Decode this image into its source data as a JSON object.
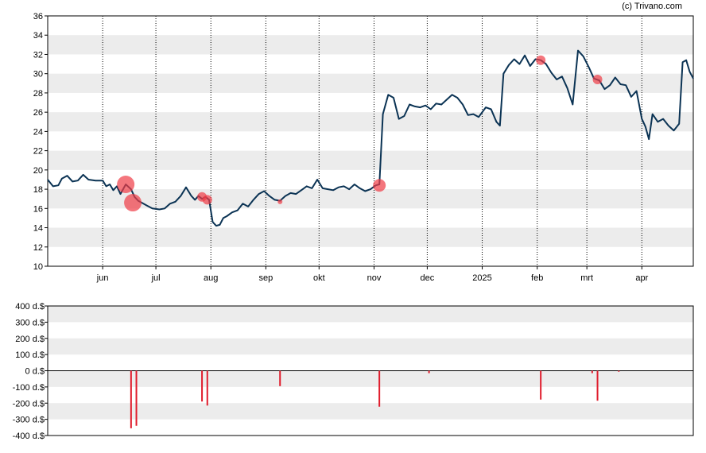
{
  "credit": "(c) Trivano.com",
  "colors": {
    "price_line": "#0b3354",
    "trade_bubble": "#f03c46",
    "volume_bar": "#e01c2c",
    "band": "#ececec",
    "grid_v": "#000000",
    "axis": "#000000"
  },
  "chart_data": [
    {
      "type": "line",
      "title": "",
      "xlabel": "",
      "ylabel": "",
      "ylim": [
        10,
        36
      ],
      "yticks": [
        10,
        12,
        14,
        16,
        18,
        20,
        22,
        24,
        26,
        28,
        30,
        32,
        34,
        36
      ],
      "alternating_bands": true,
      "grid": "vertical dotted at month starts",
      "x_domain": [
        "2024-05-01",
        "2025-04-30"
      ],
      "month_ticks": [
        {
          "label": "jun",
          "date": "2024-06-01"
        },
        {
          "label": "jul",
          "date": "2024-07-01"
        },
        {
          "label": "aug",
          "date": "2024-08-01"
        },
        {
          "label": "sep",
          "date": "2024-09-01"
        },
        {
          "label": "okt",
          "date": "2024-10-01"
        },
        {
          "label": "nov",
          "date": "2024-11-01"
        },
        {
          "label": "dec",
          "date": "2024-12-01"
        },
        {
          "label": "2025",
          "date": "2025-01-01"
        },
        {
          "label": "feb",
          "date": "2025-02-01"
        },
        {
          "label": "mrt",
          "date": "2025-03-01"
        },
        {
          "label": "apr",
          "date": "2025-04-01"
        }
      ],
      "series": [
        {
          "points": [
            [
              "2024-05-01",
              19.0
            ],
            [
              "2024-05-04",
              18.3
            ],
            [
              "2024-05-07",
              18.4
            ],
            [
              "2024-05-09",
              19.1
            ],
            [
              "2024-05-12",
              19.4
            ],
            [
              "2024-05-15",
              18.8
            ],
            [
              "2024-05-18",
              18.9
            ],
            [
              "2024-05-21",
              19.5
            ],
            [
              "2024-05-24",
              19.0
            ],
            [
              "2024-05-28",
              18.9
            ],
            [
              "2024-06-01",
              18.9
            ],
            [
              "2024-06-03",
              18.3
            ],
            [
              "2024-06-05",
              18.5
            ],
            [
              "2024-06-07",
              17.9
            ],
            [
              "2024-06-09",
              18.3
            ],
            [
              "2024-06-11",
              17.5
            ],
            [
              "2024-06-14",
              18.5
            ],
            [
              "2024-06-17",
              18.0
            ],
            [
              "2024-06-19",
              17.2
            ],
            [
              "2024-06-21",
              16.8
            ],
            [
              "2024-06-23",
              16.6
            ],
            [
              "2024-06-26",
              16.3
            ],
            [
              "2024-06-29",
              16.0
            ],
            [
              "2024-07-03",
              15.9
            ],
            [
              "2024-07-06",
              16.0
            ],
            [
              "2024-07-09",
              16.5
            ],
            [
              "2024-07-12",
              16.7
            ],
            [
              "2024-07-15",
              17.3
            ],
            [
              "2024-07-18",
              18.2
            ],
            [
              "2024-07-21",
              17.3
            ],
            [
              "2024-07-23",
              16.9
            ],
            [
              "2024-07-25",
              17.3
            ],
            [
              "2024-07-27",
              17.0
            ],
            [
              "2024-07-29",
              17.2
            ],
            [
              "2024-07-31",
              16.9
            ],
            [
              "2024-08-02",
              14.6
            ],
            [
              "2024-08-04",
              14.2
            ],
            [
              "2024-08-06",
              14.3
            ],
            [
              "2024-08-08",
              15.0
            ],
            [
              "2024-08-10",
              15.2
            ],
            [
              "2024-08-13",
              15.6
            ],
            [
              "2024-08-16",
              15.8
            ],
            [
              "2024-08-19",
              16.5
            ],
            [
              "2024-08-22",
              16.2
            ],
            [
              "2024-08-25",
              16.9
            ],
            [
              "2024-08-28",
              17.5
            ],
            [
              "2024-08-31",
              17.8
            ],
            [
              "2024-09-03",
              17.3
            ],
            [
              "2024-09-06",
              16.9
            ],
            [
              "2024-09-09",
              16.8
            ],
            [
              "2024-09-12",
              17.3
            ],
            [
              "2024-09-15",
              17.6
            ],
            [
              "2024-09-18",
              17.5
            ],
            [
              "2024-09-21",
              17.9
            ],
            [
              "2024-09-24",
              18.3
            ],
            [
              "2024-09-27",
              18.1
            ],
            [
              "2024-09-30",
              19.0
            ],
            [
              "2024-10-03",
              18.1
            ],
            [
              "2024-10-06",
              18.0
            ],
            [
              "2024-10-09",
              17.9
            ],
            [
              "2024-10-12",
              18.2
            ],
            [
              "2024-10-15",
              18.3
            ],
            [
              "2024-10-18",
              18.0
            ],
            [
              "2024-10-21",
              18.5
            ],
            [
              "2024-10-24",
              18.1
            ],
            [
              "2024-10-27",
              17.8
            ],
            [
              "2024-10-30",
              18.0
            ],
            [
              "2024-11-02",
              18.4
            ],
            [
              "2024-11-04",
              18.5
            ],
            [
              "2024-11-06",
              25.8
            ],
            [
              "2024-11-09",
              27.8
            ],
            [
              "2024-11-12",
              27.5
            ],
            [
              "2024-11-15",
              25.3
            ],
            [
              "2024-11-18",
              25.6
            ],
            [
              "2024-11-21",
              26.8
            ],
            [
              "2024-11-24",
              26.6
            ],
            [
              "2024-11-27",
              26.5
            ],
            [
              "2024-11-30",
              26.7
            ],
            [
              "2024-12-03",
              26.3
            ],
            [
              "2024-12-06",
              26.9
            ],
            [
              "2024-12-09",
              26.8
            ],
            [
              "2024-12-12",
              27.3
            ],
            [
              "2024-12-15",
              27.8
            ],
            [
              "2024-12-18",
              27.5
            ],
            [
              "2024-12-21",
              26.8
            ],
            [
              "2024-12-24",
              25.7
            ],
            [
              "2024-12-27",
              25.8
            ],
            [
              "2024-12-30",
              25.5
            ],
            [
              "2025-01-03",
              26.5
            ],
            [
              "2025-01-06",
              26.3
            ],
            [
              "2025-01-09",
              25.0
            ],
            [
              "2025-01-11",
              24.6
            ],
            [
              "2025-01-13",
              30.0
            ],
            [
              "2025-01-16",
              30.9
            ],
            [
              "2025-01-19",
              31.5
            ],
            [
              "2025-01-22",
              31.0
            ],
            [
              "2025-01-25",
              31.9
            ],
            [
              "2025-01-28",
              30.8
            ],
            [
              "2025-01-31",
              31.5
            ],
            [
              "2025-02-03",
              31.4
            ],
            [
              "2025-02-06",
              31.0
            ],
            [
              "2025-02-09",
              30.1
            ],
            [
              "2025-02-12",
              29.4
            ],
            [
              "2025-02-15",
              29.7
            ],
            [
              "2025-02-18",
              28.5
            ],
            [
              "2025-02-21",
              26.8
            ],
            [
              "2025-02-24",
              32.4
            ],
            [
              "2025-02-27",
              31.8
            ],
            [
              "2025-03-02",
              30.7
            ],
            [
              "2025-03-05",
              29.5
            ],
            [
              "2025-03-08",
              29.3
            ],
            [
              "2025-03-11",
              28.4
            ],
            [
              "2025-03-14",
              28.8
            ],
            [
              "2025-03-17",
              29.6
            ],
            [
              "2025-03-20",
              28.9
            ],
            [
              "2025-03-23",
              28.8
            ],
            [
              "2025-03-26",
              27.6
            ],
            [
              "2025-03-29",
              28.2
            ],
            [
              "2025-04-01",
              25.3
            ],
            [
              "2025-04-03",
              24.5
            ],
            [
              "2025-04-05",
              23.2
            ],
            [
              "2025-04-07",
              25.8
            ],
            [
              "2025-04-10",
              25.0
            ],
            [
              "2025-04-13",
              25.3
            ],
            [
              "2025-04-16",
              24.6
            ],
            [
              "2025-04-19",
              24.1
            ],
            [
              "2025-04-22",
              24.8
            ],
            [
              "2025-04-24",
              31.2
            ],
            [
              "2025-04-26",
              31.4
            ],
            [
              "2025-04-28",
              30.2
            ],
            [
              "2025-04-30",
              29.5
            ]
          ]
        }
      ],
      "markers": [
        {
          "date": "2024-06-14",
          "value": 18.5,
          "r": 11
        },
        {
          "date": "2024-06-18",
          "value": 16.6,
          "r": 11
        },
        {
          "date": "2024-07-27",
          "value": 17.2,
          "r": 6
        },
        {
          "date": "2024-07-30",
          "value": 16.9,
          "r": 6
        },
        {
          "date": "2024-09-09",
          "value": 16.7,
          "r": 3
        },
        {
          "date": "2024-11-04",
          "value": 18.4,
          "r": 8
        },
        {
          "date": "2025-02-03",
          "value": 31.4,
          "r": 6
        },
        {
          "date": "2025-03-07",
          "value": 29.4,
          "r": 6
        }
      ]
    },
    {
      "type": "bar",
      "title": "",
      "xlabel": "",
      "ylabel": "",
      "ylim": [
        -400,
        400
      ],
      "yticks": [
        -400,
        -300,
        -200,
        -100,
        0,
        100,
        200,
        300,
        400
      ],
      "ytick_labels": [
        "-400 d.$",
        "-300 d.$",
        "-200 d.$",
        "-100 d.$",
        "0 d.$",
        "100 d.$",
        "200 d.$",
        "300 d.$",
        "400 d.$"
      ],
      "alternating_bands": true,
      "x_domain": [
        "2024-05-01",
        "2025-04-30"
      ],
      "bars": [
        {
          "date": "2024-06-17",
          "value": -355
        },
        {
          "date": "2024-06-20",
          "value": -340
        },
        {
          "date": "2024-07-27",
          "value": -190
        },
        {
          "date": "2024-07-30",
          "value": -215
        },
        {
          "date": "2024-09-09",
          "value": -95
        },
        {
          "date": "2024-11-04",
          "value": -222
        },
        {
          "date": "2024-12-02",
          "value": -15
        },
        {
          "date": "2025-02-03",
          "value": -178
        },
        {
          "date": "2025-03-04",
          "value": -15
        },
        {
          "date": "2025-03-07",
          "value": -185
        },
        {
          "date": "2025-03-19",
          "value": -6
        }
      ]
    }
  ]
}
